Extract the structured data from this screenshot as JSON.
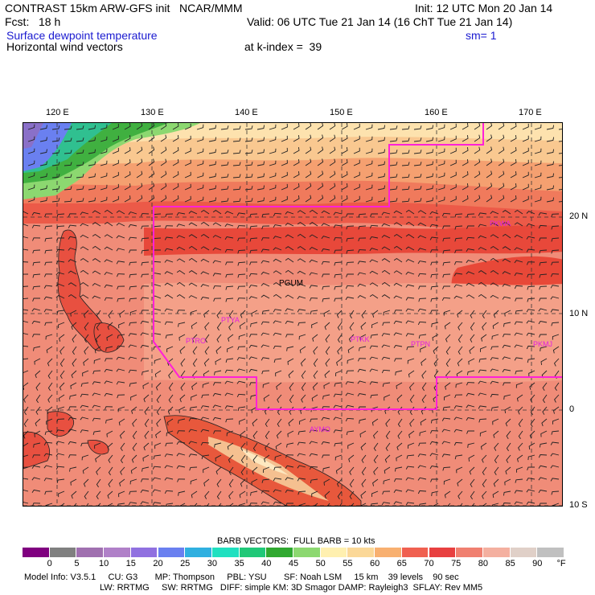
{
  "header": {
    "line1_left": "CONTRAST 15km ARW-GFS init   NCAR/MMM",
    "line1_right": "Init: 12 UTC Mon 20 Jan 14",
    "line2_left": "Fcst:   18 h",
    "line2_right": "Valid: 06 UTC Tue 21 Jan 14 (16 ChT Tue 21 Jan 14)",
    "field1": "Surface dewpoint temperature",
    "smooth": "sm= 1",
    "field2": "Horizontal wind vectors",
    "kindex": "at k-index =  39"
  },
  "axes": {
    "lon_labels": [
      "120 E",
      "130 E",
      "140 E",
      "150 E",
      "160 E",
      "170 E"
    ],
    "lat_labels": [
      "20 N",
      "10 N",
      "0",
      "10 S"
    ]
  },
  "stations": [
    {
      "id": "PGUM",
      "name": "PGUM"
    },
    {
      "id": "PTYA",
      "name": "PTYA"
    },
    {
      "id": "PTRO",
      "name": "PTRO"
    },
    {
      "id": "PTKK",
      "name": "PTKK"
    },
    {
      "id": "PTPN",
      "name": "PTPN"
    },
    {
      "id": "PKMJ",
      "name": "PKMJ"
    },
    {
      "id": "PKWA",
      "name": "PKWA"
    },
    {
      "id": "AYMO",
      "name": "AYMO"
    }
  ],
  "colorbar": {
    "title": "BARB VECTORS:  FULL BARB = 10 kts",
    "unit": "°F",
    "levels": [
      "0",
      "5",
      "10",
      "15",
      "20",
      "25",
      "30",
      "35",
      "40",
      "45",
      "50",
      "55",
      "60",
      "65",
      "70",
      "75",
      "80",
      "85",
      "90"
    ],
    "colors": [
      "#800080",
      "#808080",
      "#a070b0",
      "#b080c8",
      "#9070e0",
      "#6a80f0",
      "#30b0e0",
      "#20e0c0",
      "#20c878",
      "#30a830",
      "#8cd870",
      "#fff0b0",
      "#fbd898",
      "#f8b070",
      "#f06050",
      "#e84040",
      "#f08070",
      "#f4b0a0",
      "#e0d0c8",
      "#c0c0c0"
    ]
  },
  "footer": {
    "line1": "Model Info: V3.5.1     CU: G3       MP: Thompson     PBL: YSU       SF: Noah LSM     15 km    39 levels    90 sec",
    "line2": "LW: RRTMG     SW: RRTMG   DIFF: simple KM: 3D Smagor DAMP: Rayleigh3  SFLAY: Rev MM5"
  }
}
